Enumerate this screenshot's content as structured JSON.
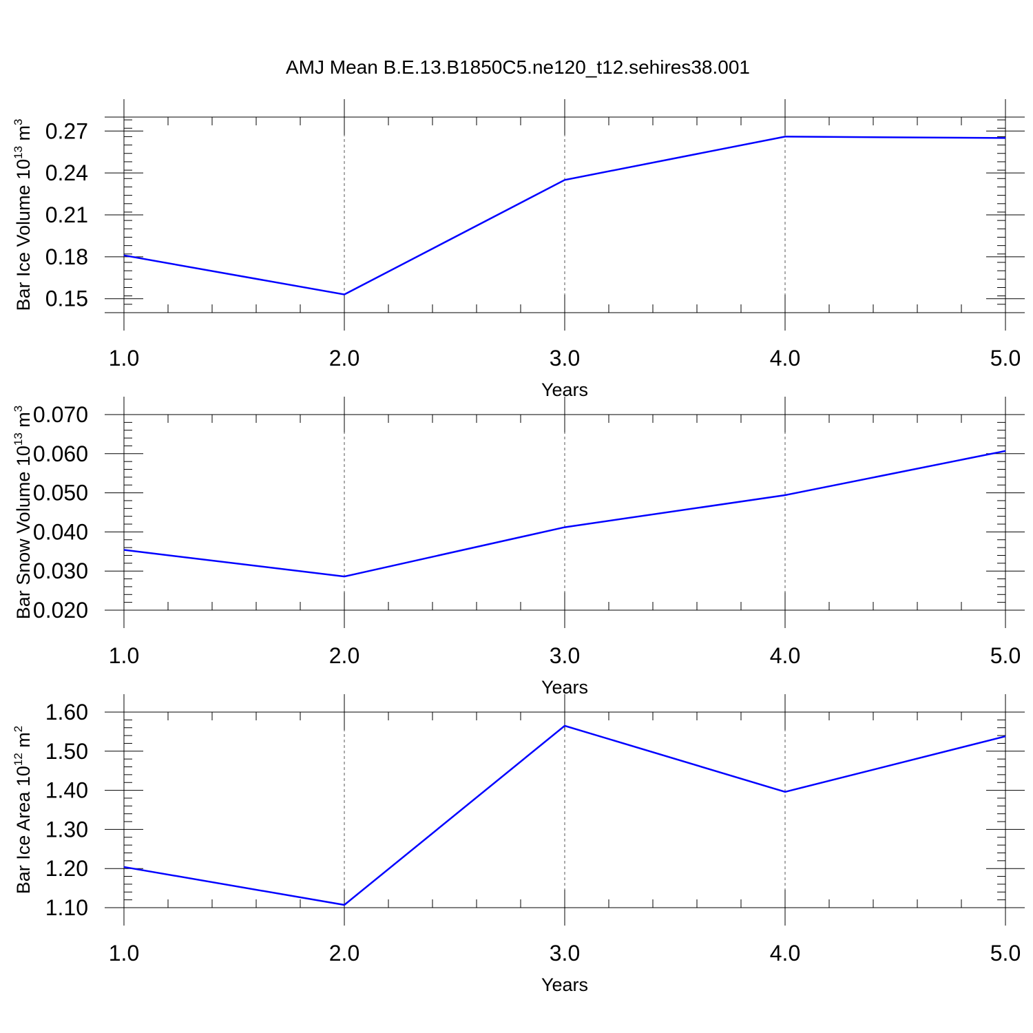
{
  "title": "AMJ Mean B.E.13.B1850C5.ne120_t12.sehires38.001",
  "line_color": "#0000ff",
  "chart_data": [
    {
      "type": "line",
      "ylabel": {
        "text": "Bar Ice Volume 10",
        "sup": "13",
        "unit": " m",
        "unit_sup": "3"
      },
      "xlabel": "Years",
      "x": [
        1,
        2,
        3,
        4,
        5
      ],
      "values": [
        0.181,
        0.153,
        0.235,
        0.266,
        0.265
      ],
      "xlim": [
        1,
        5
      ],
      "ylim": [
        0.14,
        0.28
      ],
      "xticks": [
        "1.0",
        "2.0",
        "3.0",
        "4.0",
        "5.0"
      ],
      "yticks": [
        "0.15",
        "0.18",
        "0.21",
        "0.24",
        "0.27"
      ],
      "ytick_values": [
        0.15,
        0.18,
        0.21,
        0.24,
        0.27
      ],
      "minor_step": 0.006,
      "grid": "vertical dashed"
    },
    {
      "type": "line",
      "ylabel": {
        "text": "Bar Snow Volume 10",
        "sup": "13",
        "unit": " m",
        "unit_sup": "3"
      },
      "xlabel": "Years",
      "x": [
        1,
        2,
        3,
        4,
        5
      ],
      "values": [
        0.0354,
        0.0286,
        0.0412,
        0.0494,
        0.0607
      ],
      "xlim": [
        1,
        5
      ],
      "ylim": [
        0.02,
        0.07
      ],
      "xticks": [
        "1.0",
        "2.0",
        "3.0",
        "4.0",
        "5.0"
      ],
      "yticks": [
        "0.020",
        "0.030",
        "0.040",
        "0.050",
        "0.060",
        "0.070"
      ],
      "ytick_values": [
        0.02,
        0.03,
        0.04,
        0.05,
        0.06,
        0.07
      ],
      "minor_step": 0.002,
      "grid": "vertical dashed"
    },
    {
      "type": "line",
      "ylabel": {
        "text": "Bar Ice Area 10",
        "sup": "12",
        "unit": " m",
        "unit_sup": "2"
      },
      "xlabel": "Years",
      "x": [
        1,
        2,
        3,
        4,
        5
      ],
      "values": [
        1.204,
        1.107,
        1.565,
        1.396,
        1.538
      ],
      "xlim": [
        1,
        5
      ],
      "ylim": [
        1.1,
        1.6
      ],
      "xticks": [
        "1.0",
        "2.0",
        "3.0",
        "4.0",
        "5.0"
      ],
      "yticks": [
        "1.10",
        "1.20",
        "1.30",
        "1.40",
        "1.50",
        "1.60"
      ],
      "ytick_values": [
        1.1,
        1.2,
        1.3,
        1.4,
        1.5,
        1.6
      ],
      "minor_step": 0.02,
      "grid": "vertical dashed"
    }
  ]
}
